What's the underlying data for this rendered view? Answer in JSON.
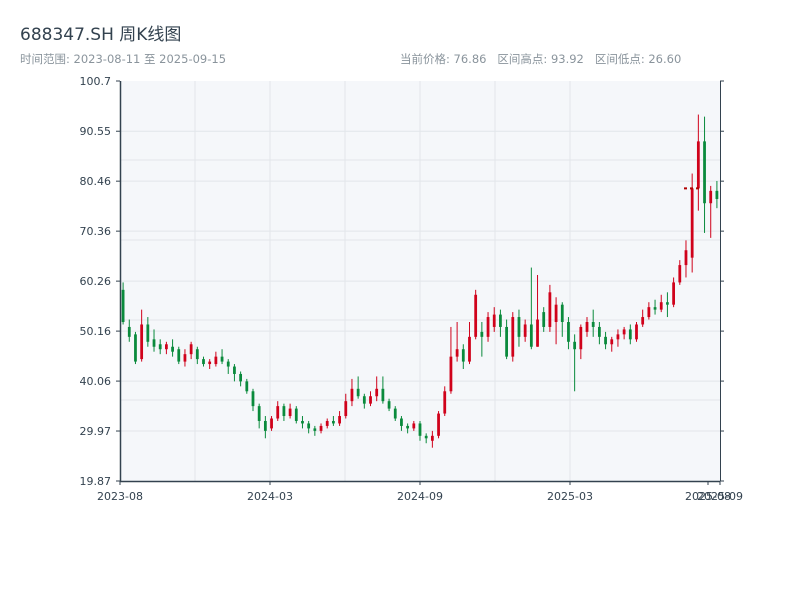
{
  "chart_data": {
    "type": "candlestick",
    "title": "688347.SH 周K线图",
    "subtitle_left": "时间范围: 2023-08-11 至 2025-09-15",
    "subtitle_right": "当前价格: 76.86   区间高点: 93.92   区间低点: 26.60",
    "ylim": [
      19.87,
      100.7
    ],
    "y_ticks": [
      "19.87",
      "29.97",
      "40.06",
      "50.16",
      "60.26",
      "70.36",
      "80.46",
      "90.55",
      "100.7"
    ],
    "x_ticks": [
      "2023-08",
      "2024-03",
      "2024-09",
      "2025-03",
      "2025-08",
      "2025-09"
    ],
    "colors": {
      "up": "#d0021b",
      "down": "#0a8a3c",
      "dotted": "#b00000",
      "grid": "#e2e6ea",
      "plot_bg": "#f5f7fa"
    },
    "candles": [
      [
        58.5,
        52.0,
        60.0,
        51.5
      ],
      [
        51.0,
        49.0,
        52.5,
        48.0
      ],
      [
        49.5,
        44.0,
        50.0,
        43.5
      ],
      [
        44.5,
        51.5,
        54.5,
        44.0
      ],
      [
        51.5,
        48.0,
        53.0,
        47.0
      ],
      [
        48.5,
        47.0,
        50.5,
        46.0
      ],
      [
        47.5,
        46.5,
        48.5,
        45.5
      ],
      [
        46.5,
        47.5,
        48.0,
        45.5
      ],
      [
        47.0,
        46.0,
        48.5,
        45.0
      ],
      [
        46.5,
        44.0,
        47.0,
        43.5
      ],
      [
        44.0,
        45.5,
        46.5,
        43.0
      ],
      [
        45.5,
        47.5,
        48.0,
        44.5
      ],
      [
        46.5,
        44.5,
        47.0,
        43.5
      ],
      [
        44.5,
        43.5,
        45.0,
        43.0
      ],
      [
        43.5,
        44.0,
        44.5,
        42.5
      ],
      [
        43.5,
        45.0,
        46.0,
        43.0
      ],
      [
        45.0,
        44.0,
        46.5,
        43.5
      ],
      [
        44.0,
        43.0,
        44.5,
        41.5
      ],
      [
        43.0,
        41.5,
        43.5,
        40.0
      ],
      [
        41.5,
        40.0,
        42.0,
        39.0
      ],
      [
        40.0,
        38.0,
        40.5,
        37.5
      ],
      [
        38.0,
        35.0,
        38.5,
        34.0
      ],
      [
        35.0,
        32.0,
        35.5,
        30.5
      ],
      [
        32.0,
        30.0,
        33.0,
        28.5
      ],
      [
        30.5,
        32.5,
        33.0,
        30.0
      ],
      [
        32.5,
        35.0,
        36.0,
        32.0
      ],
      [
        35.0,
        33.0,
        35.5,
        32.0
      ],
      [
        33.0,
        34.5,
        35.5,
        32.5
      ],
      [
        34.5,
        32.0,
        35.0,
        31.5
      ],
      [
        32.0,
        31.5,
        33.0,
        30.5
      ],
      [
        31.5,
        30.5,
        32.0,
        29.5
      ],
      [
        30.5,
        30.0,
        31.0,
        29.0
      ],
      [
        30.0,
        31.0,
        31.5,
        29.5
      ],
      [
        31.0,
        32.0,
        32.5,
        30.5
      ],
      [
        32.0,
        31.5,
        33.0,
        31.0
      ],
      [
        31.5,
        33.0,
        34.0,
        31.0
      ],
      [
        33.0,
        36.0,
        37.5,
        32.5
      ],
      [
        36.0,
        38.5,
        40.5,
        35.0
      ],
      [
        38.5,
        37.0,
        41.0,
        36.5
      ],
      [
        37.0,
        35.5,
        37.5,
        34.5
      ],
      [
        35.5,
        37.0,
        38.0,
        35.0
      ],
      [
        37.0,
        38.5,
        41.0,
        36.0
      ],
      [
        38.5,
        36.0,
        41.0,
        35.5
      ],
      [
        36.0,
        34.5,
        36.5,
        34.0
      ],
      [
        34.5,
        32.5,
        35.0,
        32.0
      ],
      [
        32.5,
        31.0,
        33.0,
        30.0
      ],
      [
        31.0,
        30.5,
        31.5,
        29.5
      ],
      [
        30.5,
        31.5,
        32.0,
        30.0
      ],
      [
        31.5,
        29.0,
        32.0,
        28.0
      ],
      [
        29.0,
        28.5,
        29.5,
        27.5
      ],
      [
        28.0,
        29.0,
        30.0,
        26.6
      ],
      [
        29.0,
        33.5,
        34.0,
        28.5
      ],
      [
        33.5,
        38.0,
        39.0,
        33.0
      ],
      [
        38.0,
        45.0,
        51.0,
        37.5
      ],
      [
        45.0,
        46.5,
        52.0,
        44.0
      ],
      [
        46.5,
        44.0,
        47.5,
        42.5
      ],
      [
        44.0,
        49.0,
        52.0,
        43.5
      ],
      [
        49.0,
        57.5,
        58.5,
        48.5
      ],
      [
        50.0,
        49.0,
        52.0,
        45.0
      ],
      [
        49.0,
        53.0,
        54.0,
        48.0
      ],
      [
        51.0,
        53.5,
        55.0,
        50.0
      ],
      [
        53.5,
        51.0,
        54.5,
        49.0
      ],
      [
        51.0,
        45.0,
        52.5,
        44.5
      ],
      [
        45.0,
        53.0,
        54.0,
        44.0
      ],
      [
        53.0,
        49.0,
        54.5,
        47.0
      ],
      [
        49.0,
        51.5,
        52.5,
        48.0
      ],
      [
        51.5,
        47.0,
        63.0,
        46.5
      ],
      [
        47.0,
        52.5,
        61.5,
        47.0
      ],
      [
        54.0,
        51.0,
        55.0,
        50.0
      ],
      [
        51.0,
        58.0,
        59.5,
        50.0
      ],
      [
        52.0,
        55.5,
        57.0,
        47.5
      ],
      [
        55.5,
        52.0,
        56.0,
        49.0
      ],
      [
        52.0,
        48.0,
        53.0,
        46.5
      ],
      [
        48.0,
        46.5,
        49.5,
        38.0
      ],
      [
        46.5,
        51.0,
        51.5,
        44.5
      ],
      [
        50.0,
        52.0,
        53.0,
        49.0
      ],
      [
        52.0,
        51.0,
        54.5,
        49.0
      ],
      [
        51.0,
        49.0,
        52.0,
        47.5
      ],
      [
        49.0,
        47.5,
        50.0,
        46.5
      ],
      [
        47.5,
        48.5,
        49.0,
        46.0
      ],
      [
        48.5,
        49.5,
        50.5,
        47.0
      ],
      [
        49.5,
        50.5,
        51.0,
        48.5
      ],
      [
        50.5,
        48.5,
        51.5,
        47.5
      ],
      [
        48.5,
        51.5,
        52.0,
        48.0
      ],
      [
        51.5,
        53.0,
        54.5,
        51.0
      ],
      [
        53.0,
        55.0,
        56.0,
        52.5
      ],
      [
        55.0,
        54.5,
        56.5,
        53.5
      ],
      [
        54.5,
        56.0,
        57.5,
        54.0
      ],
      [
        56.0,
        55.5,
        58.0,
        53.0
      ],
      [
        55.5,
        60.0,
        61.0,
        55.0
      ],
      [
        60.0,
        63.5,
        64.5,
        59.5
      ],
      [
        63.5,
        66.5,
        68.5,
        61.0
      ],
      [
        65.0,
        79.0,
        82.0,
        62.0
      ],
      [
        79.0,
        88.5,
        93.92,
        74.5
      ],
      [
        88.5,
        76.0,
        93.5,
        70.0
      ],
      [
        76.0,
        78.5,
        79.5,
        69.0
      ],
      [
        78.5,
        76.86,
        80.5,
        75.0
      ]
    ],
    "dotted_level": 79.0
  }
}
